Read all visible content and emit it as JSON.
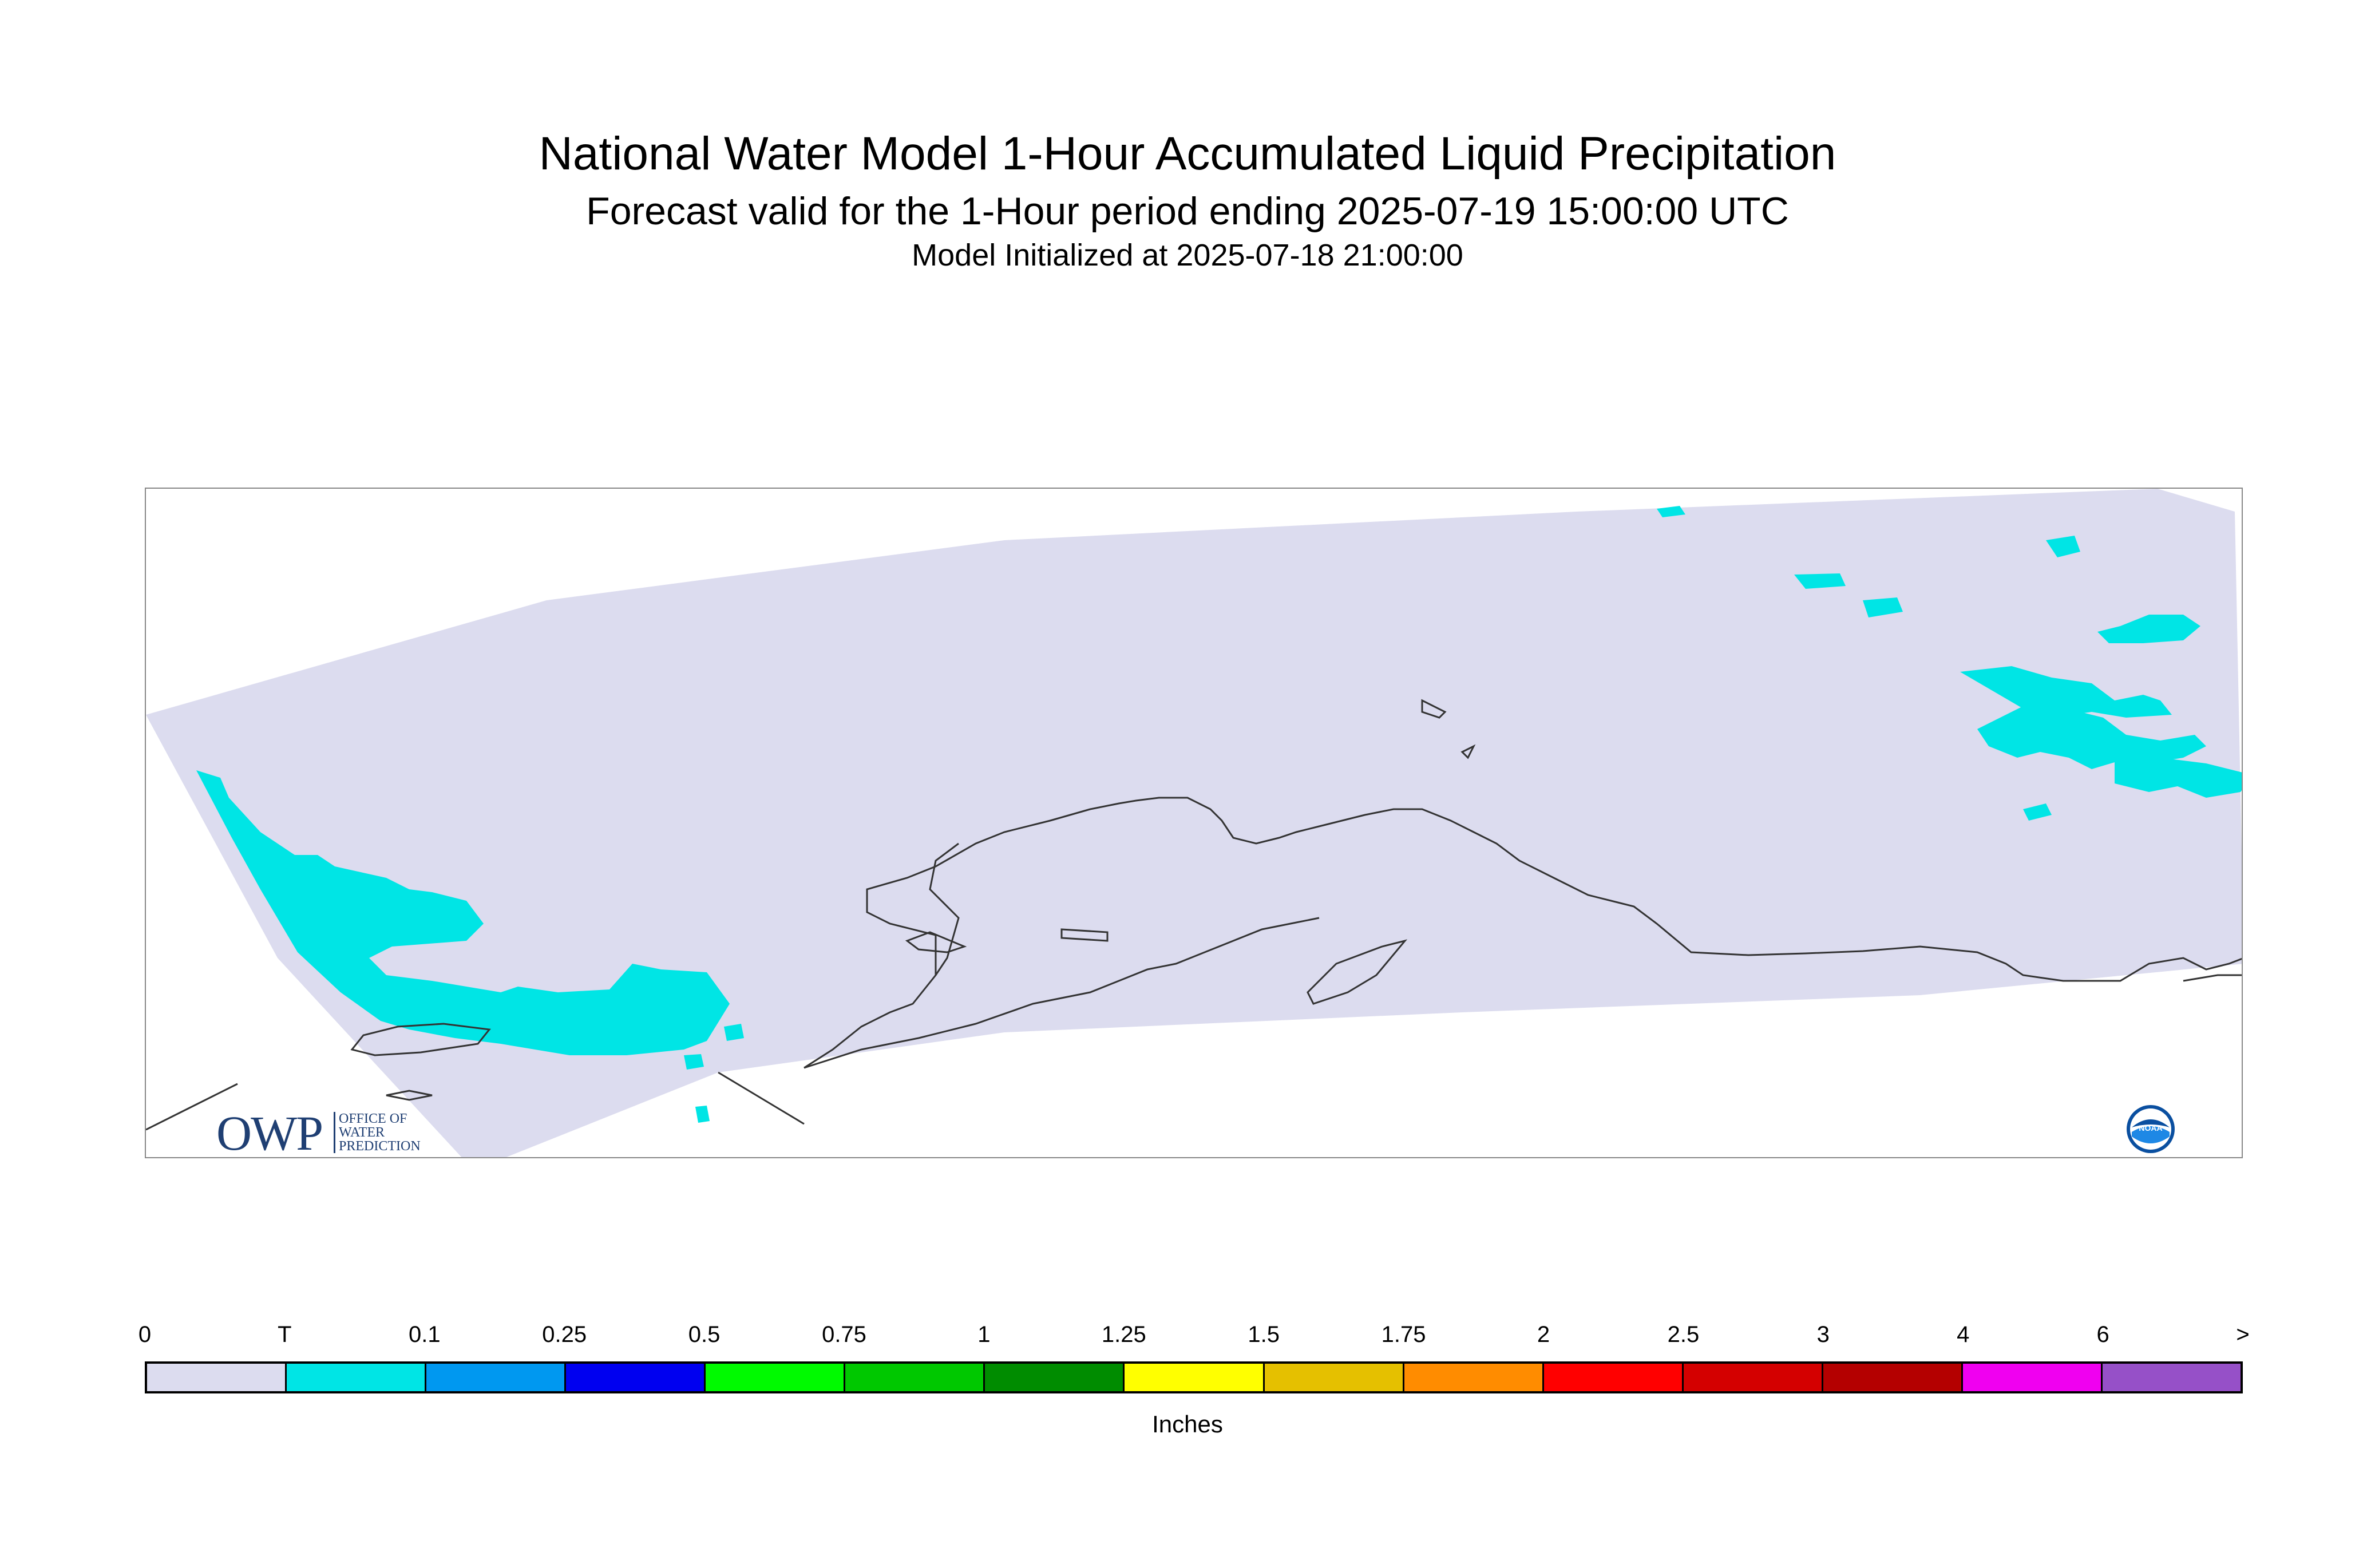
{
  "header": {
    "title": "National Water Model 1-Hour Accumulated Liquid Precipitation",
    "subtitle": "Forecast valid for the 1-Hour period ending 2025-07-19 15:00:00 UTC",
    "init_line": "Model Initialized at 2025-07-18 21:00:00"
  },
  "map": {
    "domain_fill_color": "#dcdcef",
    "precip_color": "#00e5e5",
    "coastline_color": "#333333"
  },
  "logos": {
    "owp_mark": "OWP",
    "owp_text": [
      "OFFICE OF",
      "WATER",
      "PREDICTION"
    ],
    "noaa_text": "NOAA"
  },
  "colorbar": {
    "labels": [
      "0",
      "T",
      "0.1",
      "0.25",
      "0.5",
      "0.75",
      "1",
      "1.25",
      "1.5",
      "1.75",
      "2",
      "2.5",
      "3",
      "4",
      "6",
      ">"
    ],
    "colors": [
      "#dcdcef",
      "#00e5e5",
      "#0098f0",
      "#0000f0",
      "#00fa00",
      "#00c800",
      "#008c00",
      "#ffff00",
      "#e5c000",
      "#ff8c00",
      "#ff0000",
      "#d40000",
      "#b40000",
      "#f000f0",
      "#9650c8"
    ],
    "units": "Inches"
  }
}
